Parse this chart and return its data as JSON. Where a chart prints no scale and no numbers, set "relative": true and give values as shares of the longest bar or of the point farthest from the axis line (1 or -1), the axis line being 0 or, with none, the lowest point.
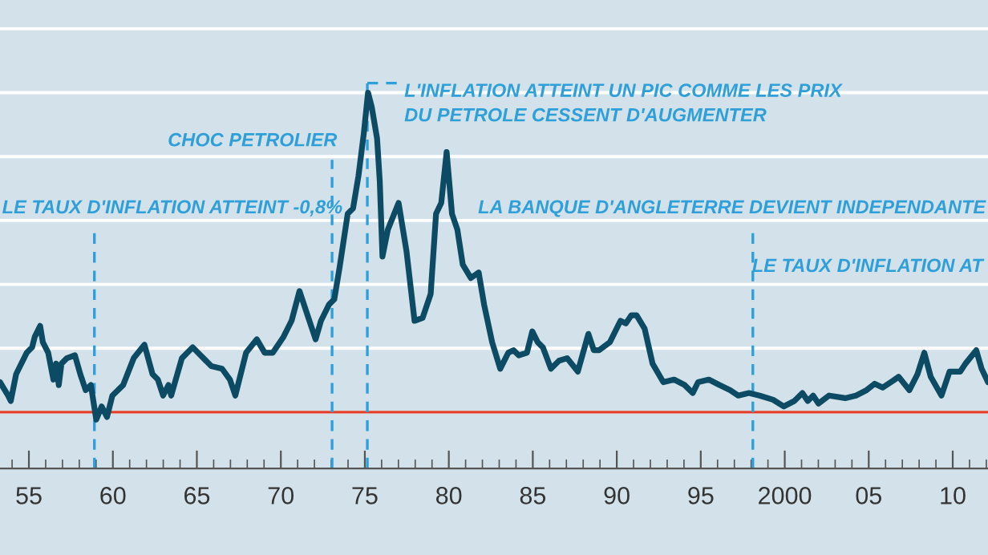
{
  "chart_data": {
    "type": "line",
    "relative": true,
    "grid": "y",
    "line_style": "solid",
    "marker": "none",
    "xlim": [
      1953.28,
      2012.1
    ],
    "xticks": [
      {
        "value": 1955,
        "label": "55"
      },
      {
        "value": 1960,
        "label": "60"
      },
      {
        "value": 1965,
        "label": "65"
      },
      {
        "value": 1970,
        "label": "70"
      },
      {
        "value": 1975,
        "label": "75"
      },
      {
        "value": 1980,
        "label": "80"
      },
      {
        "value": 1985,
        "label": "85"
      },
      {
        "value": 1990,
        "label": "90"
      },
      {
        "value": 1995,
        "label": "95"
      },
      {
        "value": 2000,
        "label": "2000"
      },
      {
        "value": 2005,
        "label": "05"
      },
      {
        "value": 2010,
        "label": "10"
      }
    ],
    "series": [
      {
        "color": "#0d4a63",
        "x": [
          1953.28,
          1953.76,
          1953.92,
          1954.24,
          1954.55,
          1954.87,
          1955.19,
          1955.35,
          1955.67,
          1955.83,
          1956.15,
          1956.46,
          1956.62,
          1956.78,
          1956.94,
          1957.26,
          1957.74,
          1958.06,
          1958.38,
          1958.69,
          1959.01,
          1959.33,
          1959.65,
          1959.97,
          1960.61,
          1961.24,
          1961.88,
          1962.36,
          1962.68,
          1962.99,
          1963.31,
          1963.47,
          1964.11,
          1964.75,
          1965.22,
          1965.86,
          1966.5,
          1966.97,
          1967.29,
          1967.93,
          1968.57,
          1969.04,
          1969.52,
          1970.16,
          1970.64,
          1971.11,
          1971.59,
          1972.07,
          1972.39,
          1972.87,
          1973.18,
          1973.5,
          1973.98,
          1974.3,
          1974.62,
          1974.94,
          1975.19,
          1975.41,
          1975.73,
          1975.89,
          1976.05,
          1976.37,
          1977.01,
          1977.48,
          1977.96,
          1978.44,
          1978.92,
          1979.24,
          1979.55,
          1979.87,
          1980.19,
          1980.51,
          1980.83,
          1981.31,
          1981.78,
          1982.1,
          1982.58,
          1983.06,
          1983.54,
          1983.85,
          1984.17,
          1984.65,
          1984.97,
          1985.29,
          1985.6,
          1986.08,
          1986.56,
          1987.04,
          1987.68,
          1988.31,
          1988.63,
          1988.95,
          1989.59,
          1990.22,
          1990.54,
          1990.86,
          1991.18,
          1991.66,
          1992.13,
          1992.77,
          1993.41,
          1994.04,
          1994.52,
          1994.84,
          1995.48,
          1996.11,
          1996.75,
          1997.23,
          1997.87,
          1998.5,
          1999.3,
          1999.94,
          2000.57,
          2001.05,
          2001.37,
          2001.69,
          2002.01,
          2002.64,
          2003.6,
          2004.24,
          2004.87,
          2005.35,
          2005.83,
          2006.46,
          2006.78,
          2007.42,
          2007.9,
          2008.31,
          2008.69,
          2009.33,
          2009.81,
          2010.45,
          2010.76,
          2011.4,
          2011.72,
          2012.1
        ],
        "values": [
          0.094,
          0.052,
          0.035,
          0.119,
          0.152,
          0.186,
          0.203,
          0.236,
          0.27,
          0.219,
          0.186,
          0.102,
          0.152,
          0.085,
          0.152,
          0.169,
          0.178,
          0.119,
          0.069,
          0.085,
          -0.023,
          0.018,
          -0.015,
          0.052,
          0.085,
          0.169,
          0.211,
          0.119,
          0.102,
          0.052,
          0.085,
          0.052,
          0.169,
          0.203,
          0.178,
          0.144,
          0.136,
          0.102,
          0.052,
          0.186,
          0.228,
          0.186,
          0.186,
          0.236,
          0.286,
          0.379,
          0.303,
          0.228,
          0.286,
          0.337,
          0.353,
          0.454,
          0.621,
          0.638,
          0.739,
          0.873,
          1.0,
          0.956,
          0.856,
          0.722,
          0.487,
          0.571,
          0.655,
          0.504,
          0.286,
          0.295,
          0.37,
          0.621,
          0.655,
          0.814,
          0.621,
          0.571,
          0.462,
          0.42,
          0.437,
          0.337,
          0.219,
          0.136,
          0.186,
          0.194,
          0.178,
          0.186,
          0.253,
          0.219,
          0.203,
          0.136,
          0.161,
          0.169,
          0.127,
          0.245,
          0.194,
          0.194,
          0.219,
          0.286,
          0.278,
          0.303,
          0.303,
          0.261,
          0.152,
          0.094,
          0.102,
          0.085,
          0.06,
          0.094,
          0.102,
          0.085,
          0.069,
          0.052,
          0.06,
          0.052,
          0.039,
          0.018,
          0.035,
          0.06,
          0.035,
          0.052,
          0.027,
          0.052,
          0.044,
          0.052,
          0.069,
          0.089,
          0.077,
          0.099,
          0.111,
          0.069,
          0.119,
          0.186,
          0.111,
          0.052,
          0.127,
          0.127,
          0.152,
          0.194,
          0.136,
          0.094
        ]
      }
    ],
    "ref_lines": [
      {
        "axis": "y",
        "value": 0,
        "color": "#e0402a",
        "line_style": "solid"
      },
      {
        "axis": "x",
        "value": 1958.9,
        "label": "LE TAUX D'INFLATION ATTEINT -0,8%",
        "color": "#2e9fd9",
        "line_style": "dashed"
      },
      {
        "axis": "x",
        "value": 1973.05,
        "label": "CHOC PETROLIER",
        "color": "#2e9fd9",
        "line_style": "dashed"
      },
      {
        "axis": "x",
        "value": 1975.15,
        "label": "L'INFLATION ATTEINT UN PIC COMME LES PRIX\nDU PETROLE CESSENT D'AUGMENTER",
        "color": "#2e9fd9",
        "line_style": "dashed"
      },
      {
        "axis": "x",
        "value": 1998.1,
        "label": "LA BANQUE D'ANGLETERRE DEVIENT INDEPENDANTE",
        "color": "#2e9fd9",
        "line_style": "dashed"
      }
    ],
    "annotations": [
      "LE TAUX D'INFLATION AT"
    ]
  }
}
